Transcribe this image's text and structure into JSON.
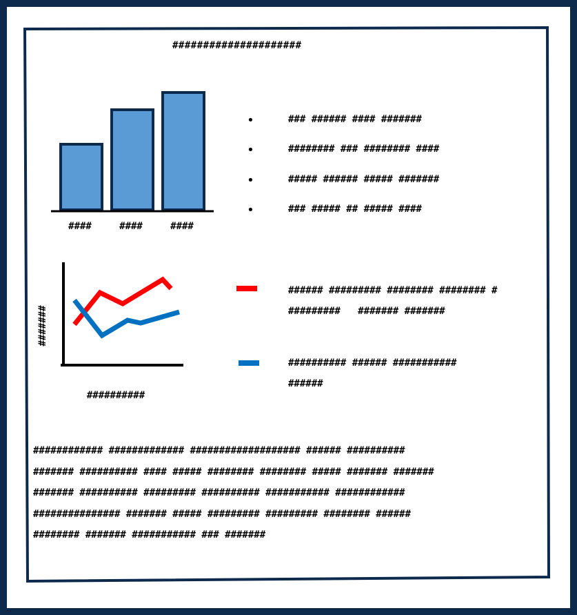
{
  "title": "#####################",
  "colors": {
    "frame": "#0d2a4d",
    "bar_fill": "#5b9bd5",
    "bar_stroke": "#0d2a4d",
    "series_red": "#ff0000",
    "series_blue": "#0070c0"
  },
  "chart_data": [
    {
      "type": "bar",
      "categories": [
        "####",
        "####",
        "####"
      ],
      "values": [
        95,
        145,
        170
      ],
      "ylim": [
        0,
        180
      ],
      "grid": false,
      "legend": "none"
    },
    {
      "type": "line",
      "xlabel": "##########",
      "ylabel": "#######",
      "x": [
        0,
        1,
        2,
        3,
        4,
        5,
        6
      ],
      "series": [
        {
          "color": "#ff0000",
          "values": [
            10,
            48,
            30,
            55,
            78,
            62,
            null
          ]
        },
        {
          "color": "#0070c0",
          "values": [
            40,
            -10,
            7,
            5,
            15,
            22,
            null
          ]
        }
      ],
      "grid": false,
      "legend": "right"
    }
  ],
  "bullets": [
    "### ###### #### #######",
    "######## ### ######## ####",
    "##### ###### ##### #######",
    "### ##### ## ##### ####"
  ],
  "legend": [
    {
      "color": "#ff0000",
      "lines": [
        "###### ######### ######## ######## #",
        "#########   ####### #######"
      ]
    },
    {
      "color": "#0070c0",
      "lines": [
        "########## ###### ###########",
        "######"
      ]
    }
  ],
  "paragraph": [
    "############ ############# ################### ###### ##########",
    "####### ########## #### ##### ######## ######## ##### ####### #######",
    "####### ########## ######### ########## ########### ############",
    "############### ####### ##### ######### ######### ######## ######",
    "######## ####### ########### ### #######"
  ]
}
